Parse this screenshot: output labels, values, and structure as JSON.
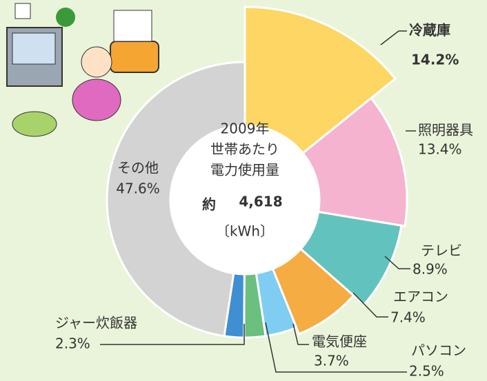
{
  "chart_data": {
    "type": "donut",
    "categories": [
      "冷蔵庫",
      "照明器具",
      "テレビ",
      "エアコン",
      "電気便座",
      "パソコン",
      "ジャー炊飯器",
      "その他"
    ],
    "values": [
      14.2,
      13.4,
      8.9,
      7.4,
      3.7,
      2.5,
      2.3,
      47.6
    ],
    "value_labels": [
      "14.2%",
      "13.4%",
      "8.9%",
      "7.4%",
      "3.7%",
      "2.5%",
      "2.3%",
      "47.6%"
    ],
    "colors": [
      "#fdd663",
      "#f5b3cf",
      "#62c3be",
      "#f5ac43",
      "#7fcdf2",
      "#6bbf7f",
      "#3f8fd2",
      "#d3d3d3"
    ],
    "center_label": {
      "lines": [
        "2009年",
        "世帯あたり",
        "電力使用量"
      ],
      "prefix": "約",
      "value": 4618,
      "value_label": "4,618",
      "unit": "〔kWh〕"
    }
  }
}
